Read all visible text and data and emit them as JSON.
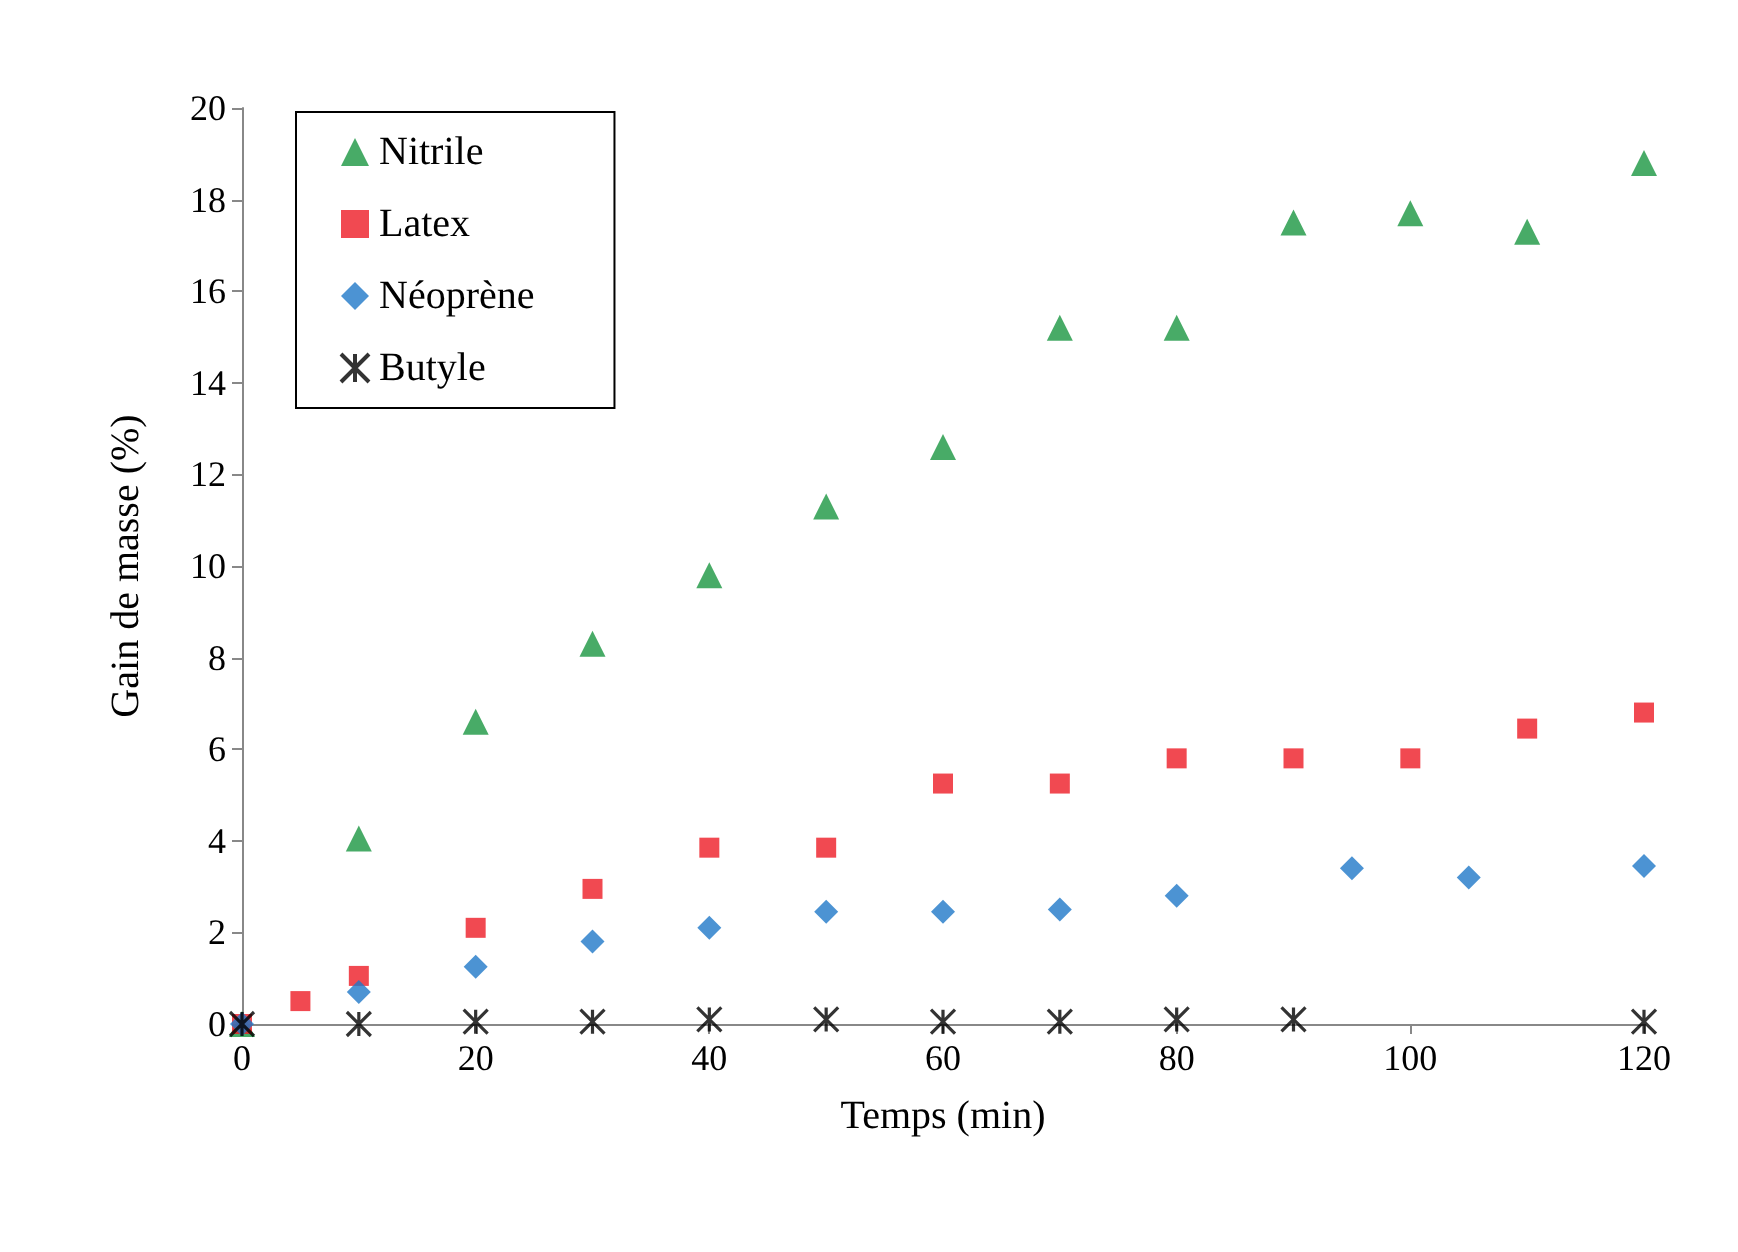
{
  "chart_data": {
    "type": "scatter",
    "xlabel": "Temps (min)",
    "ylabel": "Gain de masse (%)",
    "xlim": [
      0,
      120
    ],
    "xticks": [
      0,
      20,
      40,
      60,
      80,
      100,
      120
    ],
    "ylim": [
      0,
      20
    ],
    "yticks": [
      0,
      2,
      4,
      6,
      8,
      10,
      12,
      14,
      16,
      18,
      20
    ],
    "grid": false,
    "legend": "top left",
    "series": [
      {
        "name": "Nitrile",
        "color": "#1a9641",
        "marker": "triangle",
        "x": [
          0,
          10,
          20,
          30,
          40,
          50,
          60,
          70,
          80,
          90,
          100,
          110,
          120
        ],
        "values": [
          0,
          4.05,
          6.6,
          8.3,
          9.8,
          11.3,
          12.6,
          15.2,
          15.2,
          17.5,
          17.7,
          17.3,
          18.8
        ]
      },
      {
        "name": "Latex",
        "color": "#ee1c25",
        "marker": "square",
        "x": [
          0,
          5,
          10,
          20,
          30,
          40,
          50,
          60,
          70,
          80,
          90,
          100,
          110,
          120
        ],
        "values": [
          0,
          0.5,
          1.05,
          2.1,
          2.95,
          3.85,
          3.85,
          5.25,
          5.25,
          5.8,
          5.8,
          5.8,
          6.45,
          6.8
        ]
      },
      {
        "name": "Néoprène",
        "color": "#1f78c8",
        "marker": "diamond",
        "x": [
          0,
          10,
          20,
          30,
          40,
          50,
          60,
          70,
          80,
          95,
          105,
          120
        ],
        "values": [
          0,
          0.7,
          1.25,
          1.8,
          2.1,
          2.45,
          2.45,
          2.5,
          2.8,
          3.4,
          3.2,
          3.45
        ]
      },
      {
        "name": "Butyle",
        "color": "#000000",
        "marker": "cross",
        "x": [
          0,
          10,
          20,
          30,
          40,
          50,
          60,
          70,
          80,
          90,
          120
        ],
        "values": [
          0,
          0,
          0.05,
          0.05,
          0.1,
          0.1,
          0.05,
          0.05,
          0.1,
          0.1,
          0.05
        ]
      }
    ]
  }
}
